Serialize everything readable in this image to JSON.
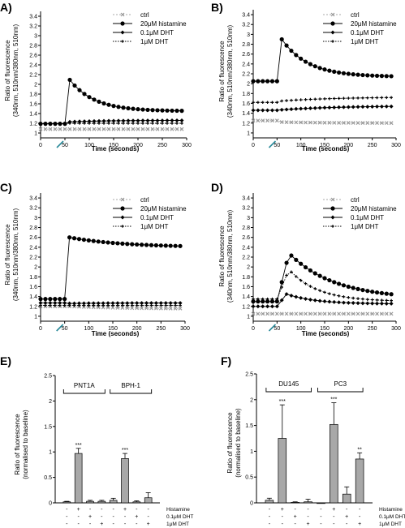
{
  "chart_data": [
    {
      "panel_label": "A)",
      "type": "line",
      "xlabel": "Time (seconds)",
      "ylabel": [
        "Ratio of fluorescence",
        "(340nm, 510nm/380nm, 510nm)"
      ],
      "xlim": [
        0,
        300
      ],
      "ylim": [
        0.9,
        3.5
      ],
      "xticks": [
        0,
        50,
        100,
        150,
        200,
        250,
        300
      ],
      "yticks": [
        1.0,
        1.2,
        1.4,
        1.6,
        1.8,
        2.0,
        2.2,
        2.4,
        2.6,
        2.8,
        3.0,
        3.2,
        3.4
      ],
      "addition_marker_x": 40,
      "legend": [
        "ctrl",
        "20μM histamine",
        "0.1μM DHT",
        "1μM DHT"
      ],
      "series": [
        {
          "name": "ctrl",
          "marker": "x",
          "baseline": 1.08,
          "peak": 1.08,
          "peak_t": 60,
          "plateau": 1.08,
          "tau": 50
        },
        {
          "name": "20μM histamine",
          "marker": "circle",
          "baseline": 1.19,
          "peak": 2.16,
          "peak_t": 55,
          "plateau": 1.45,
          "tau": 50
        },
        {
          "name": "0.1μM DHT",
          "marker": "diamond",
          "baseline": 1.19,
          "peak": 1.23,
          "peak_t": 60,
          "plateau": 1.26,
          "tau": 80
        },
        {
          "name": "1μM DHT",
          "marker": "plus",
          "baseline": 1.2,
          "peak": 1.2,
          "peak_t": 60,
          "plateau": 1.2,
          "tau": 80
        }
      ]
    },
    {
      "panel_label": "B)",
      "type": "line",
      "xlabel": "Time (seconds)",
      "ylabel": [
        "Ratio of fluorescence",
        "(340nm, 510nm/380nm, 510nm)"
      ],
      "xlim": [
        0,
        300
      ],
      "ylim": [
        0.9,
        3.5
      ],
      "xticks": [
        0,
        50,
        100,
        150,
        200,
        250,
        300
      ],
      "yticks": [
        1.0,
        1.2,
        1.4,
        1.6,
        1.8,
        2.0,
        2.2,
        2.4,
        2.6,
        2.8,
        3.0,
        3.2,
        3.4
      ],
      "addition_marker_x": 40,
      "legend": [
        "ctrl",
        "20μM histamine",
        "0.1μM DHT",
        "1μM DHT"
      ],
      "series": [
        {
          "name": "ctrl",
          "marker": "x",
          "baseline": 1.25,
          "peak": 1.22,
          "peak_t": 60,
          "plateau": 1.2,
          "tau": 100
        },
        {
          "name": "20μM histamine",
          "marker": "circle",
          "baseline": 2.05,
          "peak": 2.9,
          "peak_t": 60,
          "plateau": 2.14,
          "tau": 55
        },
        {
          "name": "0.1μM DHT",
          "marker": "diamond",
          "baseline": 1.46,
          "peak": 1.47,
          "peak_t": 60,
          "plateau": 1.55,
          "tau": 120
        },
        {
          "name": "1μM DHT",
          "marker": "plus",
          "baseline": 1.62,
          "peak": 1.65,
          "peak_t": 60,
          "plateau": 1.73,
          "tau": 120
        }
      ]
    },
    {
      "panel_label": "C)",
      "type": "line",
      "xlabel": "Time (seconds)",
      "ylabel": [
        "Ratio of fluorescence",
        "(340nm, 510nm/380nm, 510nm)"
      ],
      "xlim": [
        0,
        300
      ],
      "ylim": [
        0.9,
        3.5
      ],
      "xticks": [
        0,
        50,
        100,
        150,
        200,
        250,
        300
      ],
      "yticks": [
        1.0,
        1.2,
        1.4,
        1.6,
        1.8,
        2.0,
        2.2,
        2.4,
        2.6,
        2.8,
        3.0,
        3.2,
        3.4
      ],
      "addition_marker_x": 40,
      "legend": [
        "ctrl",
        "20μM histamine",
        "0.1μM DHT",
        "1μM DHT"
      ],
      "series": [
        {
          "name": "ctrl",
          "marker": "x",
          "baseline": 1.2,
          "peak": 1.2,
          "peak_t": 60,
          "plateau": 1.15,
          "tau": 120
        },
        {
          "name": "20μM histamine",
          "marker": "circle",
          "baseline": 1.35,
          "peak": 2.6,
          "peak_t": 60,
          "plateau": 2.4,
          "tau": 110
        },
        {
          "name": "0.1μM DHT",
          "marker": "diamond",
          "baseline": 1.27,
          "peak": 1.26,
          "peak_t": 60,
          "plateau": 1.27,
          "tau": 100
        },
        {
          "name": "1μM DHT",
          "marker": "plus",
          "baseline": 1.22,
          "peak": 1.22,
          "peak_t": 60,
          "plateau": 1.22,
          "tau": 100
        }
      ]
    },
    {
      "panel_label": "D)",
      "type": "line",
      "xlabel": "Time (seconds)",
      "ylabel": [
        "Ratio of fluorescence",
        "(340nm, 510nm/380nm, 510nm)"
      ],
      "xlim": [
        0,
        300
      ],
      "ylim": [
        0.9,
        3.5
      ],
      "xticks": [
        0,
        50,
        100,
        150,
        200,
        250,
        300
      ],
      "yticks": [
        1.0,
        1.2,
        1.4,
        1.6,
        1.8,
        2.0,
        2.2,
        2.4,
        2.6,
        2.8,
        3.0,
        3.2,
        3.4
      ],
      "addition_marker_x": 40,
      "legend": [
        "ctrl",
        "20μM histamine",
        "0.1μM DHT",
        "1μM DHT"
      ],
      "series": [
        {
          "name": "ctrl",
          "marker": "x",
          "baseline": 1.05,
          "peak": 1.05,
          "peak_t": 60,
          "plateau": 1.05,
          "tau": 100
        },
        {
          "name": "20μM histamine",
          "marker": "circle",
          "baseline": 1.3,
          "peak": 2.28,
          "peak_t": 75,
          "plateau": 1.35,
          "tau": 95
        },
        {
          "name": "0.1μM DHT",
          "marker": "diamond",
          "baseline": 1.2,
          "peak": 1.45,
          "peak_t": 70,
          "plateau": 1.25,
          "tau": 60
        },
        {
          "name": "1μM DHT",
          "marker": "plus",
          "baseline": 1.35,
          "peak": 1.95,
          "peak_t": 75,
          "plateau": 1.3,
          "tau": 60
        }
      ]
    },
    {
      "panel_label": "E)",
      "type": "bar",
      "ylabel": [
        "Ratio of fluorescence",
        "(normalised to baseline)"
      ],
      "ylim": [
        0,
        2.5
      ],
      "yticks": [
        0.0,
        0.5,
        1.0,
        1.5,
        2.0,
        2.5
      ],
      "groups": [
        {
          "name": "PNT1A",
          "values": [
            0.02,
            0.97,
            0.03,
            0.03
          ],
          "errors": [
            0.01,
            0.1,
            0.02,
            0.02
          ],
          "significance": [
            "",
            "***",
            "",
            ""
          ]
        },
        {
          "name": "BPH-1",
          "values": [
            0.05,
            0.87,
            0.02,
            0.1
          ],
          "errors": [
            0.04,
            0.1,
            0.02,
            0.1
          ],
          "significance": [
            "",
            "***",
            "",
            ""
          ]
        }
      ],
      "conditions": [
        {
          "label": "Histamine",
          "signs": [
            "-",
            "+",
            "-",
            "-"
          ]
        },
        {
          "label": "0.1μM DHT",
          "signs": [
            "-",
            "-",
            "+",
            "-"
          ]
        },
        {
          "label": "1μM DHT",
          "signs": [
            "-",
            "-",
            "-",
            "+"
          ]
        }
      ]
    },
    {
      "panel_label": "F)",
      "type": "bar",
      "ylabel": [
        "Ratio of fluorescence",
        "(normalised to baseline)"
      ],
      "ylim": [
        0,
        2.5
      ],
      "yticks": [
        0.0,
        0.5,
        1.0,
        1.5,
        2.0,
        2.5
      ],
      "groups": [
        {
          "name": "DU145",
          "values": [
            0.05,
            1.25,
            0.01,
            0.02
          ],
          "errors": [
            0.04,
            0.65,
            0.01,
            0.05
          ],
          "significance": [
            "",
            "***",
            "",
            ""
          ]
        },
        {
          "name": "PC3",
          "values": [
            0.0,
            1.52,
            0.17,
            0.85
          ],
          "errors": [
            0.0,
            0.42,
            0.14,
            0.12
          ],
          "significance": [
            "",
            "***",
            "",
            "**"
          ]
        }
      ],
      "conditions": [
        {
          "label": "Histamine",
          "signs": [
            "-",
            "+",
            "-",
            "-"
          ]
        },
        {
          "label": "0.1μM DHT",
          "signs": [
            "-",
            "-",
            "+",
            "-"
          ]
        },
        {
          "label": "1μM DHT",
          "signs": [
            "-",
            "-",
            "-",
            "+"
          ]
        }
      ]
    }
  ]
}
